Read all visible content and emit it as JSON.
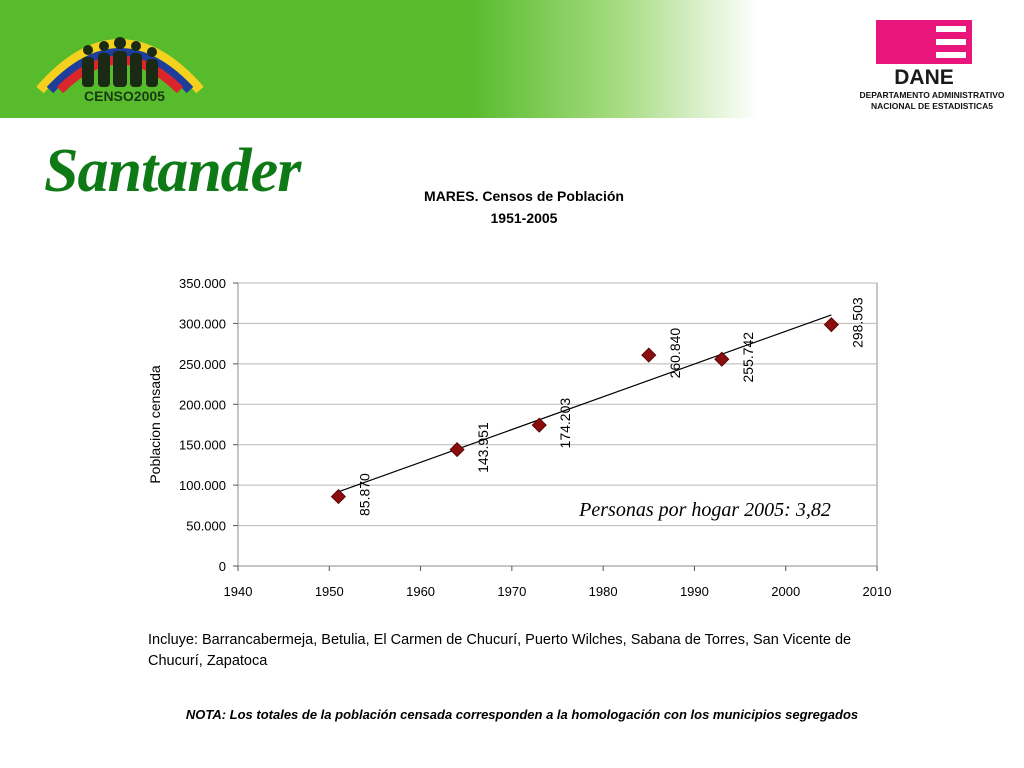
{
  "header": {
    "censo_logo_text": "CENSO2005",
    "dane_logo_text": "DANE",
    "dane_caption_line1": "DEPARTAMENTO ADMINISTRATIVO",
    "dane_caption_line2": "NACIONAL DE ESTADISTICA5",
    "colors": {
      "banner_green": "#58bb2c",
      "dane_pink": "#e8157a",
      "title_green": "#0e7a16"
    }
  },
  "page_title": "Santander",
  "chart_data": {
    "type": "scatter",
    "title": "MARES. Censos de Población",
    "subtitle": "1951-2005",
    "xlabel": "",
    "ylabel": "Poblacion censada",
    "xlim": [
      1940,
      2010
    ],
    "ylim": [
      0,
      350000
    ],
    "x_ticks": [
      "1940",
      "1950",
      "1960",
      "1970",
      "1980",
      "1990",
      "2000",
      "2010"
    ],
    "y_ticks": [
      "0",
      "50.000",
      "100.000",
      "150.000",
      "200.000",
      "250.000",
      "300.000",
      "350.000"
    ],
    "grid": true,
    "trendline": true,
    "points": [
      {
        "x": 1951,
        "y": 85870,
        "label": "85.870"
      },
      {
        "x": 1964,
        "y": 143951,
        "label": "143.951"
      },
      {
        "x": 1973,
        "y": 174203,
        "label": "174.203"
      },
      {
        "x": 1985,
        "y": 260840,
        "label": "260.840"
      },
      {
        "x": 1993,
        "y": 255742,
        "label": "255.742"
      },
      {
        "x": 2005,
        "y": 298503,
        "label": "298.503"
      }
    ],
    "annotation": "Personas por hogar 2005: 3,82",
    "marker_color": "#8b0d0d"
  },
  "includes_text": "Incluye: Barrancabermeja, Betulia, El Carmen de Chucurí, Puerto Wilches, Sabana de Torres, San Vicente de Chucurí, Zapatoca",
  "note_text": "NOTA: Los totales de la población censada corresponden a la homologación con los municipios segregados"
}
